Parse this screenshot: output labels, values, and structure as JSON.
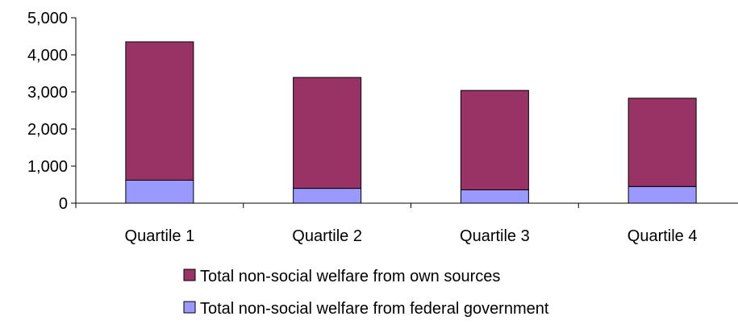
{
  "chart_data": {
    "type": "bar",
    "stacked": true,
    "categories": [
      "Quartile 1",
      "Quartile 2",
      "Quartile 3",
      "Quartile 4"
    ],
    "series": [
      {
        "name": "Total non-social welfare from federal government",
        "values": [
          620,
          400,
          360,
          450
        ],
        "color": "#9999ff"
      },
      {
        "name": "Total non-social welfare from own sources",
        "values": [
          3730,
          2990,
          2680,
          2380
        ],
        "color": "#993366"
      }
    ],
    "ylim": [
      0,
      5000
    ],
    "yticks": [
      0,
      1000,
      2000,
      3000,
      4000,
      5000
    ],
    "ytick_labels": [
      "0",
      "1,000",
      "2,000",
      "3,000",
      "4,000",
      "5,000"
    ],
    "legend_order": [
      "Total non-social welfare from own sources",
      "Total non-social welfare from federal government"
    ],
    "legend_position": "bottom",
    "grid": false
  }
}
